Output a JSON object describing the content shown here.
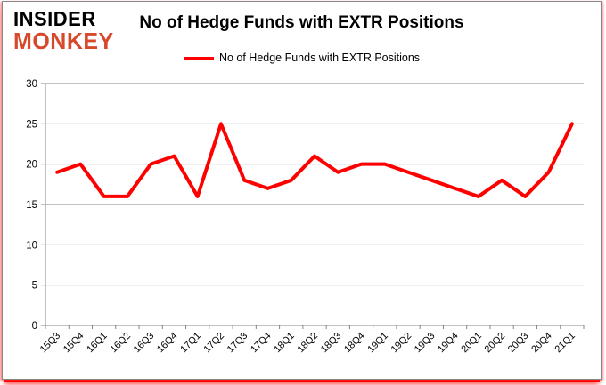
{
  "logo": {
    "line1": "INSIDER",
    "line2": "MONKEY"
  },
  "header": {
    "title": "No of Hedge Funds with EXTR Positions"
  },
  "legend": {
    "label": "No of Hedge Funds with EXTR Positions"
  },
  "colors": {
    "series_red": "#ff0000",
    "logo_black": "#000000",
    "logo_red": "#d8492c",
    "gridline_gray": "#848484",
    "axis_gray": "#848484",
    "card_border_gray": "#878787",
    "shadow_red": "#ff0000",
    "text_black": "#000000",
    "background": "#ffffff"
  },
  "chart_data": {
    "type": "line",
    "title": "No of Hedge Funds with EXTR Positions",
    "categories": [
      "15Q3",
      "15Q4",
      "16Q1",
      "16Q2",
      "16Q3",
      "16Q4",
      "17Q1",
      "17Q2",
      "17Q3",
      "17Q4",
      "18Q1",
      "18Q2",
      "18Q3",
      "18Q4",
      "19Q1",
      "19Q2",
      "19Q3",
      "19Q4",
      "20Q1",
      "20Q2",
      "20Q3",
      "20Q4",
      "21Q1"
    ],
    "series": [
      {
        "name": "No of Hedge Funds with EXTR Positions",
        "color": "#ff0000",
        "values": [
          19,
          20,
          16,
          16,
          20,
          21,
          16,
          25,
          18,
          17,
          18,
          21,
          19,
          20,
          20,
          19,
          18,
          17,
          16,
          18,
          16,
          19,
          25
        ]
      }
    ],
    "xlabel": "",
    "ylabel": "",
    "ylim": [
      0,
      30
    ],
    "y_ticks": [
      0,
      5,
      10,
      15,
      20,
      25,
      30
    ],
    "grid": true,
    "legend_position": "top",
    "x_label_rotation_deg": -45
  }
}
